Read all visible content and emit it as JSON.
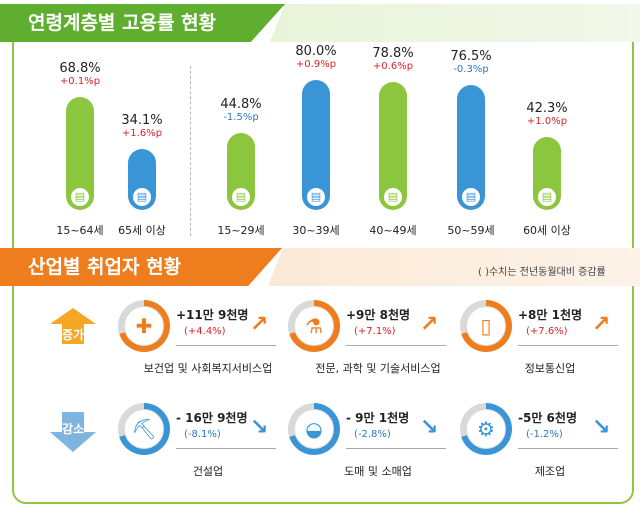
{
  "section1": {
    "title": "연령계층별 고용률 현황"
  },
  "section2": {
    "title": "산업별 취업자 현황",
    "note": "( )수치는 전년동월대비 증감률"
  },
  "chart_data": {
    "type": "bar",
    "categories": [
      "15~64세",
      "65세 이상",
      "15~29세",
      "30~39세",
      "40~49세",
      "50~59세",
      "60세 이상"
    ],
    "values": [
      68.8,
      34.1,
      44.8,
      80.0,
      78.8,
      76.5,
      42.3
    ],
    "value_labels": [
      "68.8%",
      "34.1%",
      "44.8%",
      "80.0%",
      "78.8%",
      "76.5%",
      "42.3%"
    ],
    "changes": [
      "+0.1%p",
      "+1.6%p",
      "-1.5%p",
      "+0.9%p",
      "+0.6%p",
      "-0.3%p",
      "+1.0%p"
    ],
    "colors": [
      "#8cc63f",
      "#3a95d6",
      "#8cc63f",
      "#3a95d6",
      "#8cc63f",
      "#3a95d6",
      "#8cc63f"
    ],
    "ylim": [
      0,
      100
    ]
  },
  "industries": {
    "up_label": "증가",
    "down_label": "감소",
    "increase": [
      {
        "value": "+11만 9천명",
        "pct": "(+4.4%)",
        "name": "보건업 및 사회복지서비스업",
        "icon": "medical-kit-icon"
      },
      {
        "value": "+9만 8천명",
        "pct": "(+7.1%)",
        "name": "전문, 과학 및 기술서비스업",
        "icon": "flask-icon"
      },
      {
        "value": "+8만 1천명",
        "pct": "(+7.6%)",
        "name": "정보통신업",
        "icon": "phone-icon"
      }
    ],
    "decrease": [
      {
        "value": "- 16만 9천명",
        "pct": "(-8.1%)",
        "name": "건설업",
        "icon": "excavator-icon"
      },
      {
        "value": "- 9만 1천명",
        "pct": "(-2.8%)",
        "name": "도매 및 소매업",
        "icon": "basket-icon"
      },
      {
        "value": "-5만 6천명",
        "pct": "(-1.2%)",
        "name": "제조업",
        "icon": "gear-icon"
      }
    ],
    "colors": {
      "up": "#ee7d1e",
      "down": "#3a95d6",
      "up_text": "#d9232a",
      "down_text": "#2a78c0"
    }
  }
}
